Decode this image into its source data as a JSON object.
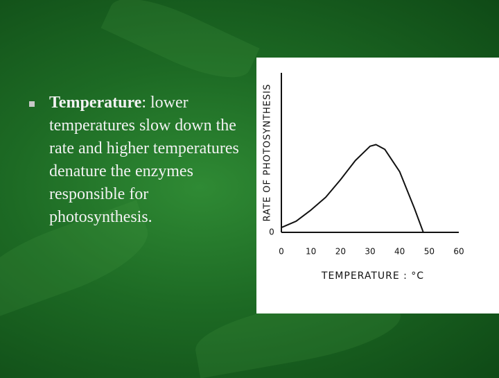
{
  "slide": {
    "bullet": {
      "term": "Temperature",
      "text": ": lower temperatures slow down the rate and higher temperatures denature the enzymes responsible for photosynthesis."
    }
  },
  "chart_data": {
    "type": "line",
    "x": [
      0,
      5,
      10,
      15,
      20,
      25,
      30,
      32,
      35,
      40,
      45,
      48
    ],
    "values": [
      3,
      7,
      14,
      22,
      33,
      45,
      54,
      55,
      52,
      38,
      15,
      0
    ],
    "color": "#111111",
    "xlim": [
      0,
      60
    ],
    "xticks": [
      0,
      10,
      20,
      30,
      40,
      50,
      60
    ],
    "ylim": [
      0,
      100
    ],
    "yticks": [
      0
    ],
    "xlabel": "TEMPERATURE : °C",
    "ylabel": "RATE OF PHOTOSYNTHESIS",
    "grid": false
  }
}
